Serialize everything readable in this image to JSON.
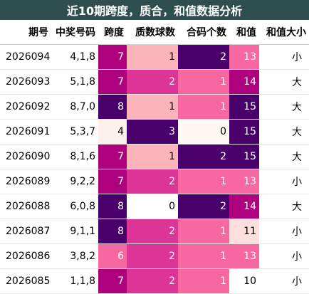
{
  "title": "近10期跨度，质合，和值数据分析",
  "headers": [
    "期号",
    "中奖号码",
    "跨度",
    "质数球数",
    "合码个数",
    "和值",
    "和值大小"
  ],
  "palette": {
    "span": {
      "4": "#fdf1ee",
      "6": "#f768a1",
      "7": "#ae017e",
      "8": "#49006a"
    },
    "prime": {
      "0": "#ffffff",
      "1": "#fbb4b9",
      "2": "#dd3497",
      "3": "#49006a"
    },
    "composite": {
      "0": "#fff7f3",
      "1": "#f768a1",
      "2": "#49006a"
    },
    "sum": {
      "10": "#ffffff",
      "11": "#fde0dd",
      "13": "#f768a1",
      "14": "#ae017e",
      "15": "#49006a"
    },
    "dark_text": "#000000",
    "light_text": "#ffffff"
  },
  "rows": [
    {
      "period": "2026094",
      "numbers": "4,1,8",
      "span": 7,
      "primes": 1,
      "composites": 2,
      "sum": 13,
      "size": "小"
    },
    {
      "period": "2026093",
      "numbers": "5,1,8",
      "span": 7,
      "primes": 2,
      "composites": 1,
      "sum": 14,
      "size": "大"
    },
    {
      "period": "2026092",
      "numbers": "8,7,0",
      "span": 8,
      "primes": 1,
      "composites": 1,
      "sum": 15,
      "size": "大"
    },
    {
      "period": "2026091",
      "numbers": "5,3,7",
      "span": 4,
      "primes": 3,
      "composites": 0,
      "sum": 15,
      "size": "大"
    },
    {
      "period": "2026090",
      "numbers": "8,1,6",
      "span": 7,
      "primes": 1,
      "composites": 2,
      "sum": 15,
      "size": "大"
    },
    {
      "period": "2026089",
      "numbers": "9,2,2",
      "span": 7,
      "primes": 2,
      "composites": 1,
      "sum": 13,
      "size": "小"
    },
    {
      "period": "2026088",
      "numbers": "6,0,8",
      "span": 8,
      "primes": 0,
      "composites": 2,
      "sum": 14,
      "size": "大"
    },
    {
      "period": "2026087",
      "numbers": "9,1,1",
      "span": 8,
      "primes": 2,
      "composites": 1,
      "sum": 11,
      "size": "小"
    },
    {
      "period": "2026086",
      "numbers": "3,8,2",
      "span": 6,
      "primes": 2,
      "composites": 1,
      "sum": 13,
      "size": "小"
    },
    {
      "period": "2026085",
      "numbers": "1,1,8",
      "span": 7,
      "primes": 2,
      "composites": 1,
      "sum": 10,
      "size": "小"
    }
  ]
}
